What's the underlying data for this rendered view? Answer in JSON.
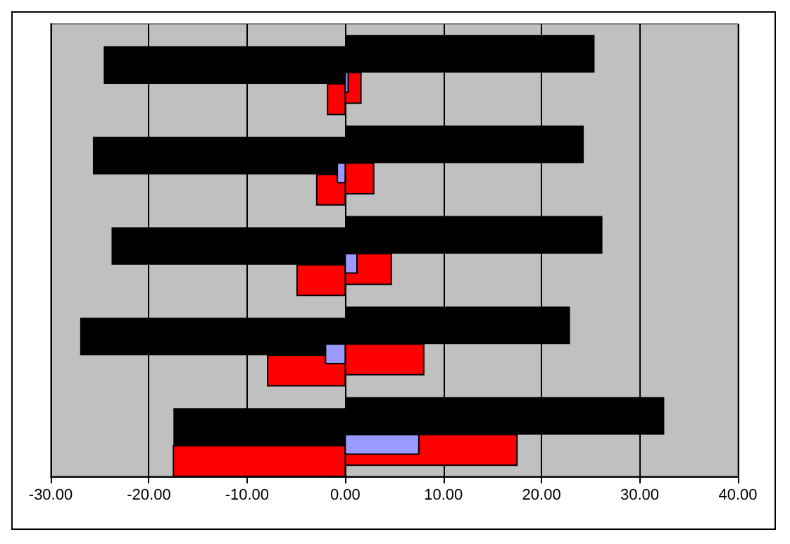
{
  "chart_data": {
    "type": "bar",
    "orientation": "horizontal",
    "categories": [
      null,
      null,
      null,
      null,
      null
    ],
    "series": [
      {
        "color": "#000000",
        "values": [
          25.4,
          24.3,
          26.2,
          22.9,
          32.5
        ]
      },
      {
        "color": "#000000",
        "values": [
          -24.6,
          -25.7,
          -23.8,
          -27.0,
          -17.5
        ]
      },
      {
        "color": "#ff0000",
        "values": [
          1.6,
          2.9,
          4.7,
          8.0,
          17.5
        ]
      },
      {
        "color": "#ff0000",
        "values": [
          -1.8,
          -2.9,
          -4.9,
          -7.9,
          -17.5
        ]
      },
      {
        "color": "#9999ff",
        "values": [
          0.3,
          -0.8,
          1.2,
          -2.0,
          7.5
        ]
      }
    ],
    "xlim": [
      -30,
      40
    ],
    "xticks": [
      {
        "value": -30,
        "label": "-30.00"
      },
      {
        "value": -20,
        "label": "-20.00"
      },
      {
        "value": -10,
        "label": "-10.00"
      },
      {
        "value": 0,
        "label": "0.00"
      },
      {
        "value": 10,
        "label": "10.00"
      },
      {
        "value": 20,
        "label": "20.00"
      },
      {
        "value": 30,
        "label": "30.00"
      },
      {
        "value": 40,
        "label": "40.00"
      }
    ],
    "grid": "x",
    "tick_labels": "x"
  }
}
